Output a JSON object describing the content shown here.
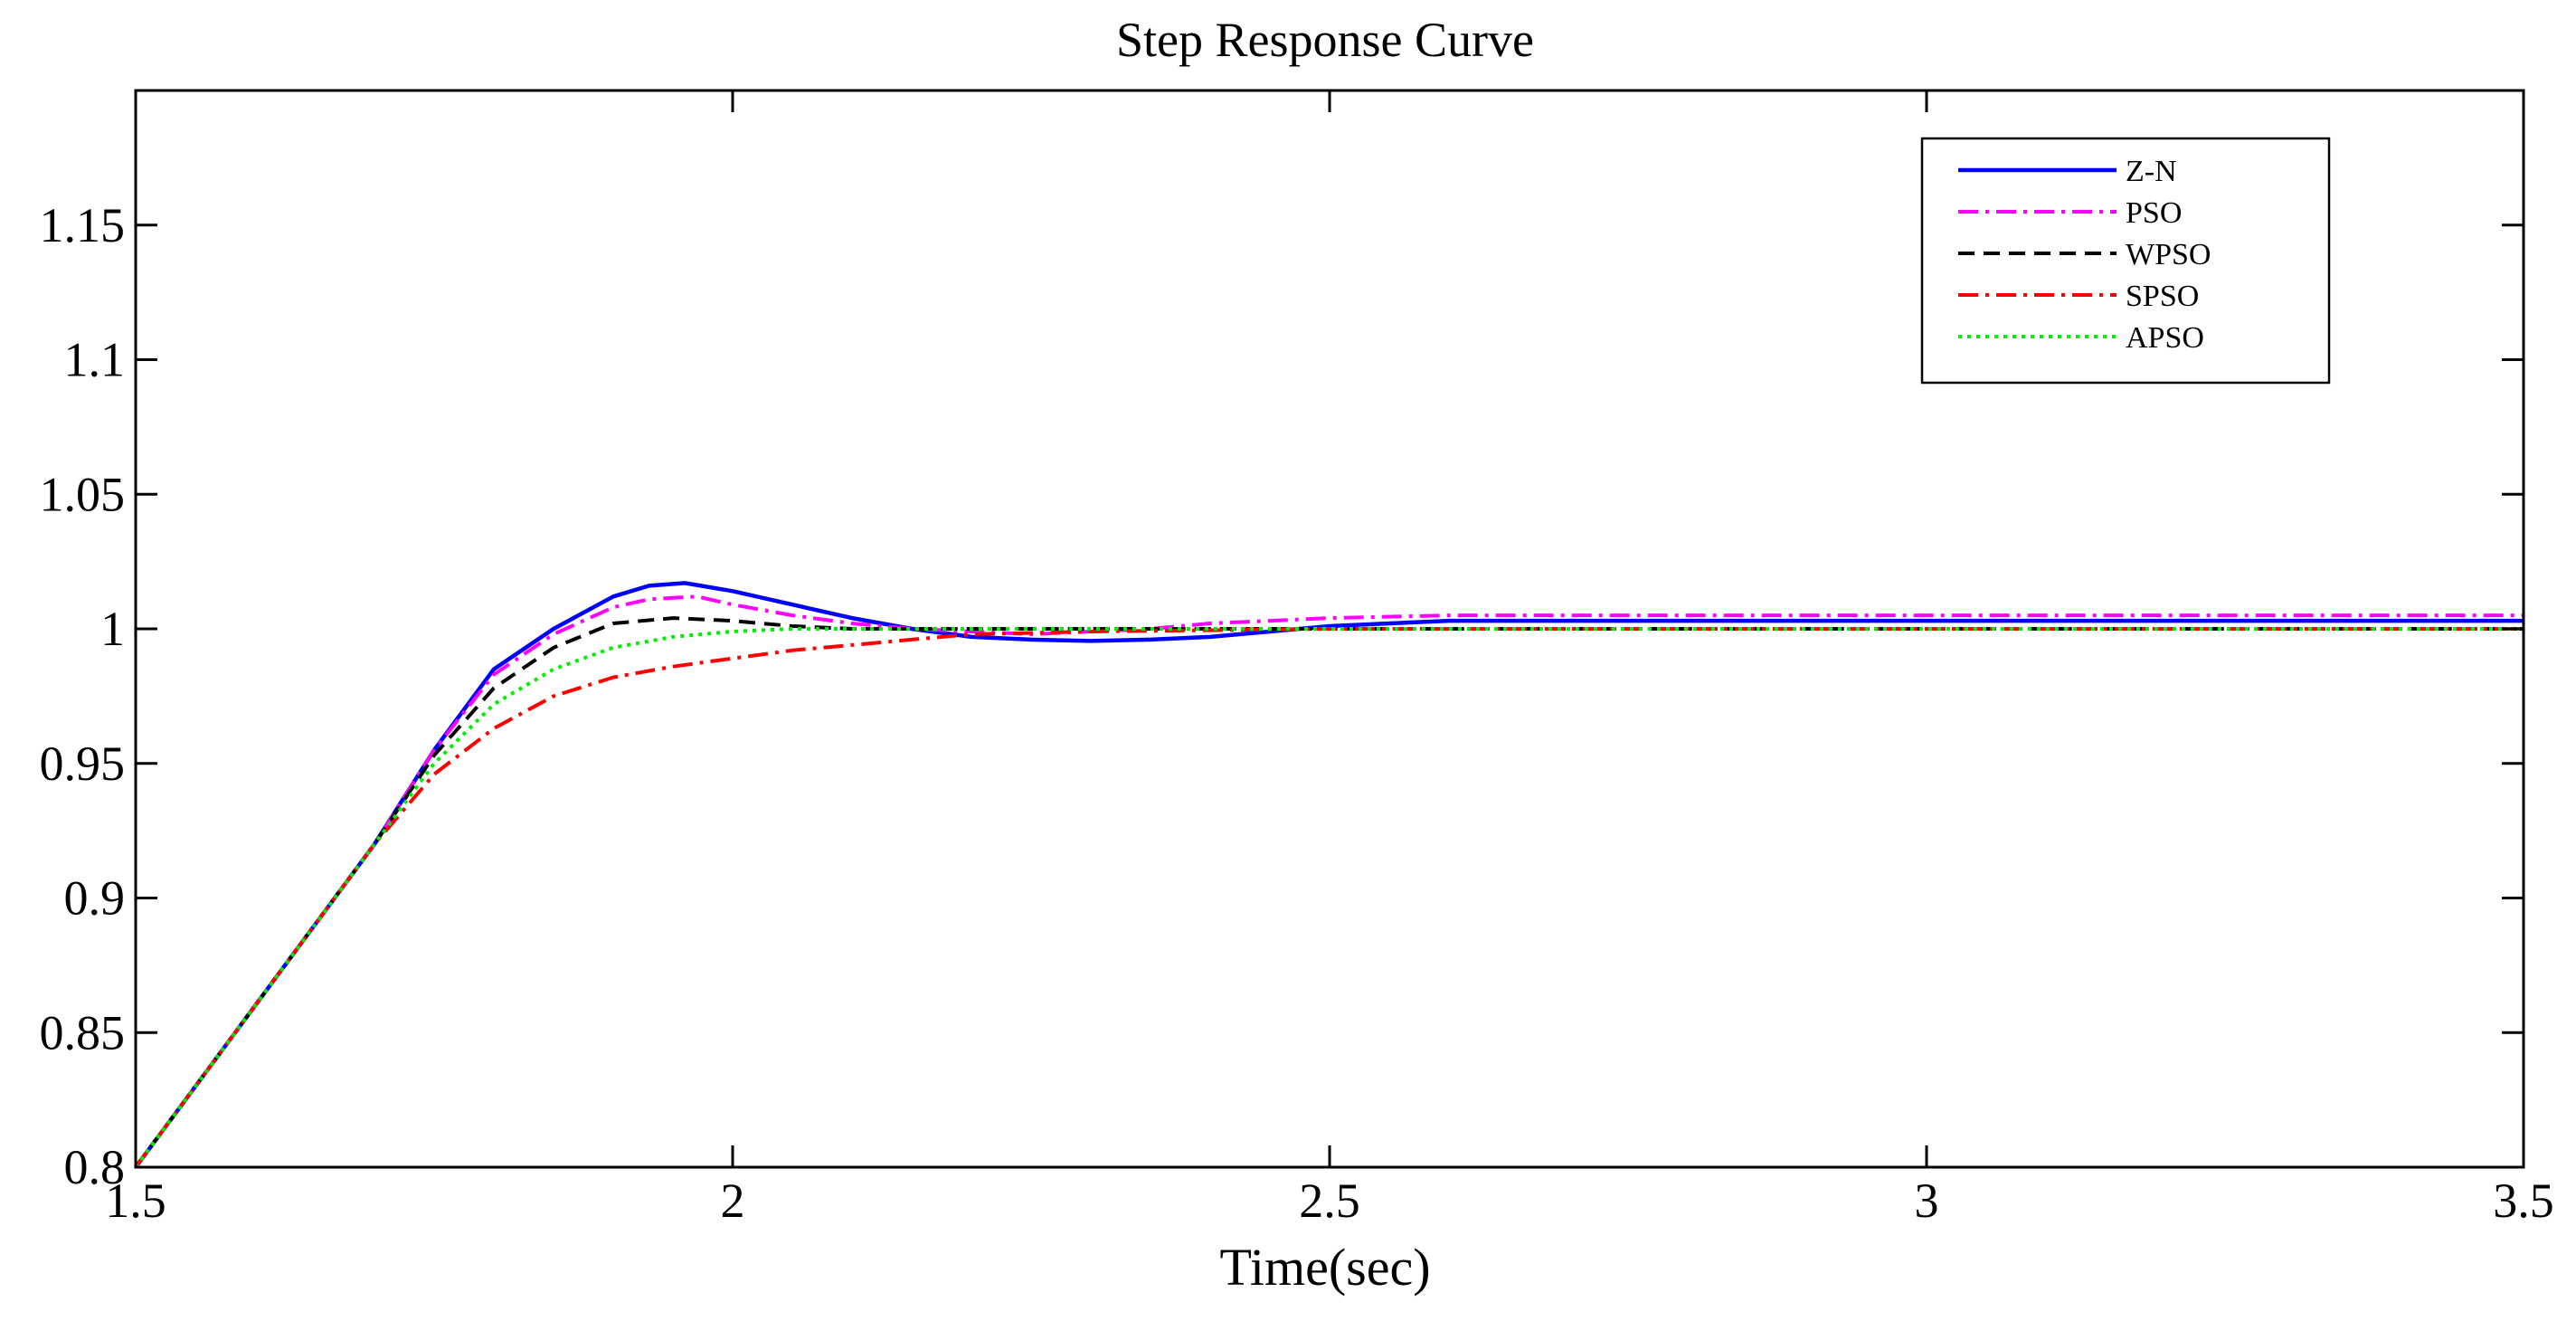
{
  "chart_data": {
    "type": "line",
    "title": "Step Response Curve",
    "xlabel": "Time(sec)",
    "ylabel": "",
    "xlim": [
      1.5,
      3.5
    ],
    "ylim": [
      0.8,
      1.2
    ],
    "xticks": [
      1.5,
      2,
      2.5,
      3,
      3.5
    ],
    "xtick_labels": [
      "1.5",
      "2",
      "2.5",
      "3",
      "3.5"
    ],
    "yticks": [
      0.8,
      0.85,
      0.9,
      0.95,
      1,
      1.05,
      1.1,
      1.15
    ],
    "ytick_labels": [
      "0.8",
      "0.85",
      "0.9",
      "0.95",
      "1",
      "1.05",
      "1.1",
      "1.15"
    ],
    "grid": false,
    "legend_position": "top-right",
    "series": [
      {
        "name": "Z-N",
        "color": "#0000ff",
        "style": "solid",
        "x": [
          1.5,
          1.6,
          1.7,
          1.75,
          1.8,
          1.85,
          1.9,
          1.93,
          1.96,
          2.0,
          2.05,
          2.1,
          2.15,
          2.2,
          2.25,
          2.3,
          2.35,
          2.4,
          2.45,
          2.5,
          2.55,
          2.6,
          2.7,
          3.0,
          3.5
        ],
        "y": [
          0.8,
          0.86,
          0.92,
          0.955,
          0.985,
          1.0,
          1.012,
          1.016,
          1.017,
          1.014,
          1.009,
          1.004,
          1.0,
          0.997,
          0.996,
          0.9955,
          0.996,
          0.997,
          0.999,
          1.001,
          1.002,
          1.003,
          1.003,
          1.003,
          1.003
        ]
      },
      {
        "name": "PSO",
        "color": "#ff00ff",
        "style": "dashdot",
        "x": [
          1.5,
          1.6,
          1.7,
          1.75,
          1.8,
          1.85,
          1.9,
          1.93,
          1.97,
          2.0,
          2.05,
          2.1,
          2.15,
          2.2,
          2.25,
          2.3,
          2.35,
          2.4,
          2.45,
          2.5,
          2.6,
          2.7,
          3.0,
          3.5
        ],
        "y": [
          0.8,
          0.86,
          0.92,
          0.955,
          0.983,
          0.998,
          1.008,
          1.011,
          1.012,
          1.009,
          1.005,
          1.002,
          1.0,
          0.999,
          0.998,
          0.999,
          1.0,
          1.002,
          1.003,
          1.004,
          1.005,
          1.005,
          1.005,
          1.005
        ]
      },
      {
        "name": "WPSO",
        "color": "#000000",
        "style": "dashed",
        "x": [
          1.5,
          1.6,
          1.7,
          1.75,
          1.8,
          1.85,
          1.9,
          1.95,
          2.0,
          2.05,
          2.1,
          2.2,
          2.5,
          3.0,
          3.5
        ],
        "y": [
          0.8,
          0.86,
          0.92,
          0.953,
          0.978,
          0.993,
          1.002,
          1.004,
          1.003,
          1.001,
          1.0,
          1.0,
          1.0,
          1.0,
          1.0
        ]
      },
      {
        "name": "SPSO",
        "color": "#ff0000",
        "style": "dashdot",
        "x": [
          1.5,
          1.6,
          1.7,
          1.75,
          1.8,
          1.85,
          1.9,
          1.95,
          2.0,
          2.05,
          2.1,
          2.15,
          2.2,
          2.3,
          2.5,
          3.0,
          3.5
        ],
        "y": [
          0.8,
          0.86,
          0.92,
          0.946,
          0.963,
          0.975,
          0.982,
          0.986,
          0.989,
          0.992,
          0.994,
          0.996,
          0.998,
          0.999,
          1.0,
          1.0,
          1.0
        ]
      },
      {
        "name": "APSO",
        "color": "#00ee00",
        "style": "dotted",
        "x": [
          1.5,
          1.6,
          1.7,
          1.75,
          1.8,
          1.85,
          1.9,
          1.95,
          2.0,
          2.05,
          2.1,
          2.2,
          2.5,
          3.0,
          3.5
        ],
        "y": [
          0.8,
          0.86,
          0.92,
          0.95,
          0.972,
          0.985,
          0.993,
          0.997,
          0.999,
          1.0,
          1.0,
          1.0,
          1.0,
          1.0,
          1.0
        ]
      }
    ]
  }
}
